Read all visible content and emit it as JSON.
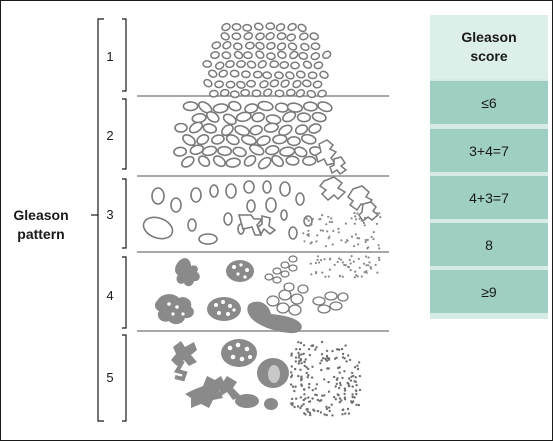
{
  "axis_title": "Gleason\npattern",
  "patterns": [
    "1",
    "2",
    "3",
    "4",
    "5"
  ],
  "score_table": {
    "header": "Gleason\nscore",
    "rows": [
      "≤6",
      "3+4=7",
      "4+3=7",
      "8",
      "≥9"
    ]
  },
  "colors": {
    "table_header_bg": "#dcefe9",
    "table_row_bg": "#9fcfc2",
    "gland_fill": "#8a8a8a",
    "gland_outline": "#7a7a7a",
    "divider": "#8c8c8c"
  }
}
